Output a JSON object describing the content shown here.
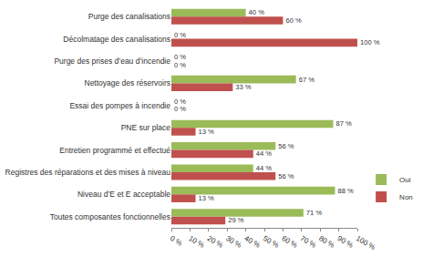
{
  "chart_data": {
    "type": "bar",
    "orientation": "horizontal",
    "categories": [
      "Purge des canalisations",
      "Décolmatage des canalisations",
      "Purge des prises d’eau d’incendie",
      "Nettoyage des réservoirs",
      "Essai des pompes à incendie",
      "PNE sur place",
      "Entretien programmé et effectué",
      "Registres des réparations et des mises à niveau",
      "Niveau d’E et E acceptable",
      "Toutes composantes fonctionnelles"
    ],
    "series": [
      {
        "name": "Oui",
        "color": "#9bbb59",
        "values": [
          40,
          0,
          0,
          67,
          0,
          87,
          56,
          44,
          88,
          71
        ],
        "value_labels": [
          "40 %",
          "0 %",
          "0 %",
          "67 %",
          "0 %",
          "87 %",
          "56 %",
          "44 %",
          "88 %",
          "71 %"
        ]
      },
      {
        "name": "Non",
        "color": "#c0504d",
        "values": [
          60,
          100,
          0,
          33,
          0,
          13,
          44,
          56,
          13,
          29
        ],
        "value_labels": [
          "60 %",
          "100 %",
          "0 %",
          "33 %",
          "0 %",
          "13 %",
          "44 %",
          "56 %",
          "13 %",
          "29 %"
        ]
      }
    ],
    "xlim": [
      0,
      100
    ],
    "xticks": [
      {
        "value": 0,
        "label": "0 %"
      },
      {
        "value": 10,
        "label": "10 %"
      },
      {
        "value": 20,
        "label": "20 %"
      },
      {
        "value": 30,
        "label": "30 %"
      },
      {
        "value": 40,
        "label": "40 %"
      },
      {
        "value": 50,
        "label": "50 %"
      },
      {
        "value": 60,
        "label": "60 %"
      },
      {
        "value": 70,
        "label": "70 %"
      },
      {
        "value": 80,
        "label": "80 %"
      },
      {
        "value": 90,
        "label": "90 %"
      },
      {
        "value": 100,
        "label": "100 %"
      }
    ],
    "data_labels": true,
    "legend": "right",
    "grid": false
  }
}
